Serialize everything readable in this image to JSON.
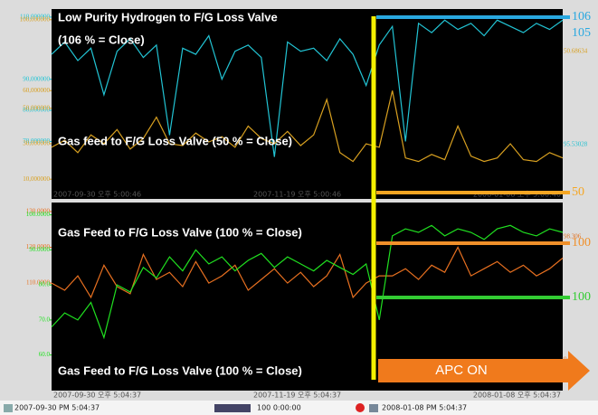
{
  "panels": [
    {
      "x_labels": [
        "2007-09-30 오후 5:00:46",
        "2007-11-19 오후 5:00:46",
        "2008-01-08 오후 5:00:46"
      ],
      "captions": [
        "Low Purity Hydrogen to F/G Loss Valve",
        "(106 % = Close)",
        "Gas feed to F/G Loss Valve (50 % = Close)"
      ],
      "right_labels": [
        {
          "text": "50.68634",
          "color": "#d8a020"
        },
        {
          "text": "95.53028",
          "color": "#20c0d0"
        }
      ],
      "traces": [
        {
          "color": "#22c4d4",
          "ylim": [
            55,
            112
          ],
          "ticks": [
            {
              "value": 110,
              "label": "110,000000"
            },
            {
              "value": 90,
              "label": "90,000000"
            },
            {
              "value": 80,
              "label": "80,000000"
            },
            {
              "value": 70,
              "label": "70,000000"
            }
          ],
          "values": [
            98,
            102,
            96,
            100,
            85,
            99,
            103,
            97,
            101,
            72,
            100,
            98,
            104,
            90,
            99,
            101,
            97,
            65,
            102,
            99,
            100,
            96,
            103,
            98,
            88,
            101,
            107,
            70,
            108,
            105,
            109,
            106,
            108,
            104,
            109,
            107,
            105,
            108,
            106,
            109
          ]
        },
        {
          "color": "#d8a020",
          "ylim": [
            5,
            105
          ],
          "ticks": [
            {
              "value": 100,
              "label": "100,000000"
            },
            {
              "value": 60,
              "label": "60,000000"
            },
            {
              "value": 50,
              "label": "50,000000"
            },
            {
              "value": 30,
              "label": "30,000000"
            },
            {
              "value": 10,
              "label": "10,000000"
            }
          ],
          "values": [
            28,
            32,
            25,
            35,
            30,
            38,
            27,
            33,
            45,
            30,
            29,
            36,
            31,
            34,
            28,
            40,
            33,
            30,
            37,
            29,
            35,
            55,
            25,
            20,
            30,
            28,
            60,
            22,
            20,
            24,
            21,
            40,
            23,
            20,
            22,
            30,
            21,
            20,
            25,
            22
          ]
        }
      ]
    },
    {
      "x_labels": [
        "2007-09-30 오후 5:04:37",
        "2007-11-19 오후 5:04:37",
        "2008-01-08 오후 5:04:37"
      ],
      "captions": [
        "Gas Feed to F/G Loss Valve (100 % = Close)",
        "Gas Feed to F/G Loss Valve (100 % = Close)"
      ],
      "right_labels": [
        {
          "text": "98.306",
          "color": "#e07020"
        },
        {
          "text": "94.8",
          "color": "#e07020"
        }
      ],
      "traces": [
        {
          "color": "#e87020",
          "ylim": [
            85,
            132
          ],
          "ticks": [
            {
              "value": 130,
              "label": "130.0000"
            },
            {
              "value": 120,
              "label": "120.0000"
            },
            {
              "value": 110,
              "label": "110.0000"
            }
          ],
          "values": [
            110,
            108,
            112,
            106,
            115,
            109,
            107,
            118,
            111,
            113,
            109,
            116,
            110,
            112,
            115,
            108,
            111,
            114,
            110,
            113,
            109,
            112,
            118,
            106,
            110,
            112,
            112,
            114,
            111,
            115,
            113,
            120,
            112,
            114,
            116,
            113,
            115,
            112,
            114,
            117
          ]
        },
        {
          "color": "#20e020",
          "ylim": [
            55,
            103
          ],
          "ticks": [
            {
              "value": 100,
              "label": "100.0000"
            },
            {
              "value": 90,
              "label": "90.0000"
            },
            {
              "value": 80,
              "label": "80.0"
            },
            {
              "value": 70,
              "label": "70.0"
            },
            {
              "value": 60,
              "label": "60.0"
            }
          ],
          "values": [
            68,
            72,
            70,
            75,
            65,
            80,
            78,
            85,
            82,
            88,
            84,
            90,
            86,
            88,
            84,
            87,
            89,
            85,
            88,
            86,
            84,
            87,
            85,
            83,
            86,
            70,
            94,
            96,
            95,
            97,
            94,
            96,
            95,
            93,
            96,
            97,
            95,
            94,
            96,
            95
          ]
        }
      ]
    }
  ],
  "markers": [
    {
      "label": "106",
      "color": "#29a8e0"
    },
    {
      "label": "105",
      "color": "#29a8e0"
    },
    {
      "label": "50",
      "color": "#f5a623"
    },
    {
      "label": "100",
      "color": "#f0902a"
    },
    {
      "label": "100",
      "color": "#33cc33"
    }
  ],
  "arrow_label": "APC ON",
  "toolbar": {
    "start": "2007-09-30  PM 5:04:37",
    "span": "100 0:00:00",
    "end": "2008-01-08  PM 5:04:37"
  }
}
